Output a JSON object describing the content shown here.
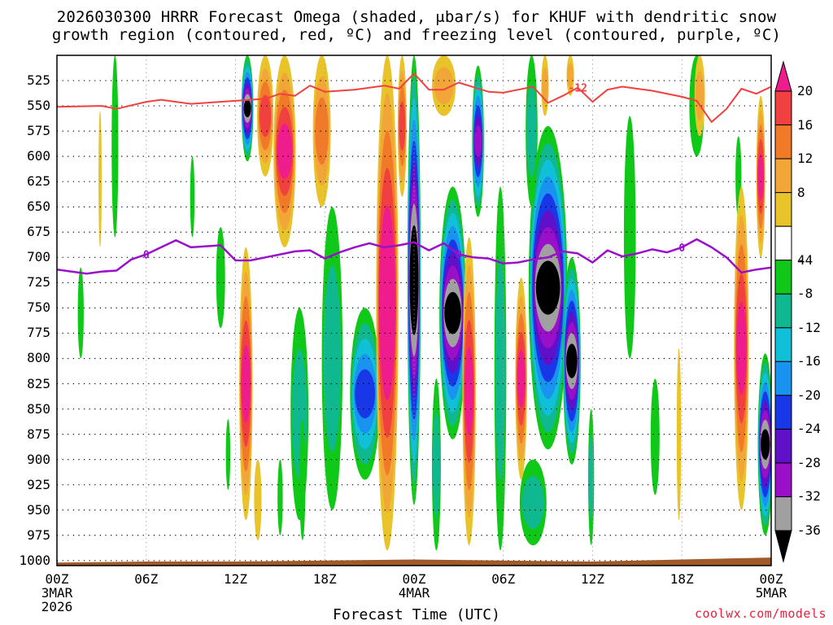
{
  "title_line1": "2026030300 HRRR Forecast Omega (shaded, μbar/s) for KHUF with dendritic snow",
  "title_line2": "growth region (contoured, red, ºC) and freezing level (contoured, purple, ºC)",
  "xlabel": "Forecast Time (UTC)",
  "credit": "coolwx.com/models",
  "chart_data": {
    "type": "heatmap",
    "title": "2026030300 HRRR Forecast Omega (shaded, μbar/s) for KHUF with dendritic snow growth region (contoured, red, ºC) and freezing level (contoured, purple, ºC)",
    "xlabel": "Forecast Time (UTC)",
    "ylabel": "Pressure (mb)",
    "x_ticks": [
      {
        "hour": 0,
        "label": "00Z",
        "sub": [
          "3MAR",
          "2026"
        ]
      },
      {
        "hour": 6,
        "label": "06Z",
        "sub": []
      },
      {
        "hour": 12,
        "label": "12Z",
        "sub": []
      },
      {
        "hour": 18,
        "label": "18Z",
        "sub": []
      },
      {
        "hour": 24,
        "label": "00Z",
        "sub": [
          "4MAR"
        ]
      },
      {
        "hour": 30,
        "label": "06Z",
        "sub": []
      },
      {
        "hour": 36,
        "label": "12Z",
        "sub": []
      },
      {
        "hour": 42,
        "label": "18Z",
        "sub": []
      },
      {
        "hour": 48,
        "label": "00Z",
        "sub": [
          "5MAR"
        ]
      }
    ],
    "y_ticks": [
      525,
      550,
      575,
      600,
      625,
      650,
      675,
      700,
      725,
      750,
      775,
      800,
      825,
      850,
      875,
      900,
      925,
      950,
      975,
      1000
    ],
    "xlim": [
      0,
      48
    ],
    "ylim": [
      500,
      1005
    ],
    "colorbar": {
      "ticks": [
        20,
        16,
        12,
        8,
        4,
        -4,
        -8,
        -12,
        -16,
        -20,
        -24,
        -28,
        -32,
        -36
      ],
      "levels": [
        {
          "lo": 20,
          "hi": 24,
          "color": "#ee1c8c"
        },
        {
          "lo": 16,
          "hi": 20,
          "color": "#f04040"
        },
        {
          "lo": 12,
          "hi": 16,
          "color": "#f07a28"
        },
        {
          "lo": 8,
          "hi": 12,
          "color": "#f3a638"
        },
        {
          "lo": 4,
          "hi": 8,
          "color": "#e8c42a"
        },
        {
          "lo": 0,
          "hi": 4,
          "color": "#f5e860"
        },
        {
          "lo": -4,
          "hi": 4,
          "color": "#ffffff"
        },
        {
          "lo": -8,
          "hi": -4,
          "color": "#10c818"
        },
        {
          "lo": -12,
          "hi": -8,
          "color": "#10b890"
        },
        {
          "lo": -16,
          "hi": -12,
          "color": "#10c0d8"
        },
        {
          "lo": -20,
          "hi": -16,
          "color": "#1894f0"
        },
        {
          "lo": -24,
          "hi": -20,
          "color": "#1838e8"
        },
        {
          "lo": -28,
          "hi": -24,
          "color": "#6010c8"
        },
        {
          "lo": -32,
          "hi": -28,
          "color": "#9a10c8"
        },
        {
          "lo": -36,
          "hi": -32,
          "color": "#a0a0a0"
        },
        {
          "lo": -40,
          "hi": -36,
          "color": "#000000"
        }
      ]
    },
    "fields": [
      {
        "name": "upward-core-00z",
        "hour": 24.0,
        "p_top": 500,
        "p_bot": 945,
        "width_h": 0.9,
        "peak": -40
      },
      {
        "name": "upward-core-09z",
        "hour": 33.0,
        "p_top": 570,
        "p_bot": 890,
        "width_h": 2.6,
        "peak": -38
      },
      {
        "name": "upward-core-02z",
        "hour": 26.6,
        "p_top": 630,
        "p_bot": 880,
        "width_h": 1.8,
        "peak": -38
      },
      {
        "name": "upward-core-10z",
        "hour": 34.6,
        "p_top": 700,
        "p_bot": 905,
        "width_h": 1.2,
        "peak": -38
      },
      {
        "name": "upward-core-13z",
        "hour": 12.8,
        "p_top": 500,
        "p_bot": 605,
        "width_h": 0.8,
        "peak": -36
      },
      {
        "name": "upward-core-23z",
        "hour": 47.6,
        "p_top": 795,
        "p_bot": 975,
        "width_h": 1.0,
        "peak": -38
      },
      {
        "name": "upward-core-04z",
        "hour": 28.3,
        "p_top": 510,
        "p_bot": 660,
        "width_h": 0.8,
        "peak": -30
      },
      {
        "name": "upward-blob-20z",
        "hour": 20.7,
        "p_top": 750,
        "p_bot": 920,
        "width_h": 2.0,
        "peak": -20
      },
      {
        "name": "upward-blob-16z",
        "hour": 16.3,
        "p_top": 750,
        "p_bot": 960,
        "width_h": 1.2,
        "peak": -10
      },
      {
        "name": "upward-band-03z",
        "hour": 3.9,
        "p_top": 500,
        "p_bot": 680,
        "width_h": 0.45,
        "peak": -6
      },
      {
        "name": "upward-band-02z",
        "hour": 1.6,
        "p_top": 710,
        "p_bot": 800,
        "width_h": 0.4,
        "peak": -6
      },
      {
        "name": "upward-band-07z",
        "hour": 9.1,
        "p_top": 600,
        "p_bot": 680,
        "width_h": 0.3,
        "peak": -6
      },
      {
        "name": "upward-band-10z",
        "hour": 11.0,
        "p_top": 670,
        "p_bot": 770,
        "width_h": 0.6,
        "peak": -6
      },
      {
        "name": "upward-band-18z",
        "hour": 18.5,
        "p_top": 650,
        "p_bot": 950,
        "width_h": 1.4,
        "peak": -10
      },
      {
        "name": "upward-band-16z-lo",
        "hour": 16.5,
        "p_top": 860,
        "p_bot": 980,
        "width_h": 0.4,
        "peak": -6
      },
      {
        "name": "upward-band-14z",
        "hour": 15.0,
        "p_top": 900,
        "p_bot": 975,
        "width_h": 0.35,
        "peak": -6
      },
      {
        "name": "upward-band-11z-lo",
        "hour": 11.5,
        "p_top": 860,
        "p_bot": 930,
        "width_h": 0.3,
        "peak": -6
      },
      {
        "name": "upward-band-15z-cyan",
        "hour": 38.5,
        "p_top": 560,
        "p_bot": 800,
        "width_h": 0.8,
        "peak": -6
      },
      {
        "name": "upward-band-16z-green",
        "hour": 40.2,
        "p_top": 820,
        "p_bot": 935,
        "width_h": 0.6,
        "peak": -6
      },
      {
        "name": "upward-band-22z-green",
        "hour": 43.0,
        "p_top": 500,
        "p_bot": 600,
        "width_h": 1.0,
        "peak": -6
      },
      {
        "name": "upward-band-21z",
        "hour": 45.8,
        "p_top": 580,
        "p_bot": 660,
        "width_h": 0.4,
        "peak": -6
      },
      {
        "name": "upward-band-08z-up",
        "hour": 31.9,
        "p_top": 500,
        "p_bot": 650,
        "width_h": 0.8,
        "peak": -10
      },
      {
        "name": "upward-band-05z",
        "hour": 29.8,
        "p_top": 630,
        "p_bot": 990,
        "width_h": 0.8,
        "peak": -8
      },
      {
        "name": "upward-band-01z",
        "hour": 25.5,
        "p_top": 820,
        "p_bot": 990,
        "width_h": 0.6,
        "peak": -8
      },
      {
        "name": "upward-band-07z-lo",
        "hour": 32.0,
        "p_top": 900,
        "p_bot": 985,
        "width_h": 1.8,
        "peak": -10
      },
      {
        "name": "upward-band-11z",
        "hour": 35.9,
        "p_top": 850,
        "p_bot": 985,
        "width_h": 0.4,
        "peak": -8
      },
      {
        "name": "sinking-core-22z",
        "hour": 22.2,
        "p_top": 500,
        "p_bot": 990,
        "width_h": 1.5,
        "peak": 24
      },
      {
        "name": "sinking-core-12z",
        "hour": 12.7,
        "p_top": 690,
        "p_bot": 960,
        "width_h": 0.9,
        "peak": 22
      },
      {
        "name": "sinking-core-15z",
        "hour": 15.3,
        "p_top": 500,
        "p_bot": 690,
        "width_h": 1.5,
        "peak": 22
      },
      {
        "name": "sinking-core-17z",
        "hour": 17.8,
        "p_top": 500,
        "p_bot": 650,
        "width_h": 1.2,
        "peak": 14
      },
      {
        "name": "sinking-core-03z",
        "hour": 27.7,
        "p_top": 680,
        "p_bot": 985,
        "width_h": 0.9,
        "peak": 22
      },
      {
        "name": "sinking-core-07z",
        "hour": 31.2,
        "p_top": 720,
        "p_bot": 920,
        "width_h": 0.8,
        "peak": 22
      },
      {
        "name": "sinking-core-21z",
        "hour": 46.0,
        "p_top": 630,
        "p_bot": 950,
        "width_h": 1.0,
        "peak": 22
      },
      {
        "name": "sinking-core-23z",
        "hour": 47.3,
        "p_top": 540,
        "p_bot": 700,
        "width_h": 0.6,
        "peak": 22
      },
      {
        "name": "sinking-band-13z",
        "hour": 14.0,
        "p_top": 500,
        "p_bot": 620,
        "width_h": 1.1,
        "peak": 16
      },
      {
        "name": "sinking-band-00z",
        "hour": 23.2,
        "p_top": 500,
        "p_bot": 640,
        "width_h": 0.6,
        "peak": 18
      },
      {
        "name": "sinking-band-02z",
        "hour": 26.0,
        "p_top": 500,
        "p_bot": 560,
        "width_h": 1.6,
        "peak": 8
      },
      {
        "name": "sinking-band-08z",
        "hour": 32.8,
        "p_top": 500,
        "p_bot": 560,
        "width_h": 0.5,
        "peak": 10
      },
      {
        "name": "sinking-band-10z",
        "hour": 34.5,
        "p_top": 500,
        "p_bot": 540,
        "width_h": 0.5,
        "peak": 8
      },
      {
        "name": "sinking-band-19z",
        "hour": 43.2,
        "p_top": 500,
        "p_bot": 580,
        "width_h": 0.7,
        "peak": 8
      },
      {
        "name": "sinking-band-02z-y",
        "hour": 2.9,
        "p_top": 555,
        "p_bot": 690,
        "width_h": 0.2,
        "peak": 5
      },
      {
        "name": "sinking-band-12z-lo",
        "hour": 41.8,
        "p_top": 790,
        "p_bot": 960,
        "width_h": 0.3,
        "peak": 5
      },
      {
        "name": "sinking-band-13z-lo",
        "hour": 13.5,
        "p_top": 900,
        "p_bot": 980,
        "width_h": 0.5,
        "peak": 6
      }
    ],
    "snow_growth_contour": {
      "color": "#f04040",
      "label": "-12",
      "label_hour": 35.0,
      "points": [
        [
          0,
          551
        ],
        [
          3,
          550
        ],
        [
          4,
          553
        ],
        [
          6,
          546
        ],
        [
          7,
          544
        ],
        [
          9,
          548
        ],
        [
          12,
          545
        ],
        [
          14,
          543
        ],
        [
          15,
          538
        ],
        [
          16,
          540
        ],
        [
          17,
          530
        ],
        [
          18,
          536
        ],
        [
          20,
          534
        ],
        [
          22,
          530
        ],
        [
          23,
          533
        ],
        [
          24,
          518
        ],
        [
          25,
          534
        ],
        [
          26,
          534
        ],
        [
          27,
          527
        ],
        [
          29,
          536
        ],
        [
          30,
          537
        ],
        [
          32,
          531
        ],
        [
          33,
          547
        ],
        [
          34,
          540
        ],
        [
          35,
          532
        ],
        [
          36,
          546
        ],
        [
          37,
          534
        ],
        [
          38,
          531
        ],
        [
          40,
          535
        ],
        [
          42,
          541
        ],
        [
          43,
          545
        ],
        [
          44,
          566
        ],
        [
          45,
          553
        ],
        [
          46,
          533
        ],
        [
          47,
          538
        ],
        [
          48,
          531
        ]
      ]
    },
    "freezing_contour": {
      "color": "#9a10c8",
      "label": "0",
      "label_hours": [
        6.0,
        27.0,
        42.0
      ],
      "points": [
        [
          0,
          712
        ],
        [
          2,
          716
        ],
        [
          3,
          714
        ],
        [
          4,
          713
        ],
        [
          5,
          702
        ],
        [
          6,
          697
        ],
        [
          7,
          690
        ],
        [
          8,
          683
        ],
        [
          9,
          690
        ],
        [
          11,
          688
        ],
        [
          12,
          703
        ],
        [
          13,
          703
        ],
        [
          14,
          700
        ],
        [
          15,
          697
        ],
        [
          16,
          694
        ],
        [
          17,
          693
        ],
        [
          18,
          701
        ],
        [
          19,
          695
        ],
        [
          20,
          690
        ],
        [
          21,
          686
        ],
        [
          22,
          690
        ],
        [
          23,
          688
        ],
        [
          24,
          685
        ],
        [
          25,
          693
        ],
        [
          26,
          686
        ],
        [
          27,
          697
        ],
        [
          28,
          700
        ],
        [
          29,
          701
        ],
        [
          30,
          706
        ],
        [
          31,
          705
        ],
        [
          32,
          702
        ],
        [
          33,
          700
        ],
        [
          34,
          694
        ],
        [
          35,
          696
        ],
        [
          36,
          705
        ],
        [
          37,
          693
        ],
        [
          38,
          699
        ],
        [
          39,
          696
        ],
        [
          40,
          692
        ],
        [
          41,
          695
        ],
        [
          42,
          690
        ],
        [
          43,
          682
        ],
        [
          44,
          690
        ],
        [
          45,
          700
        ],
        [
          46,
          715
        ],
        [
          47,
          712
        ],
        [
          48,
          710
        ]
      ]
    },
    "terrain": {
      "color": "#a05a28",
      "points": [
        [
          0,
          1002
        ],
        [
          6,
          1001
        ],
        [
          12,
          1001
        ],
        [
          18,
          1000
        ],
        [
          24,
          999
        ],
        [
          30,
          1000
        ],
        [
          36,
          1001
        ],
        [
          42,
          999
        ],
        [
          48,
          997
        ]
      ]
    }
  }
}
